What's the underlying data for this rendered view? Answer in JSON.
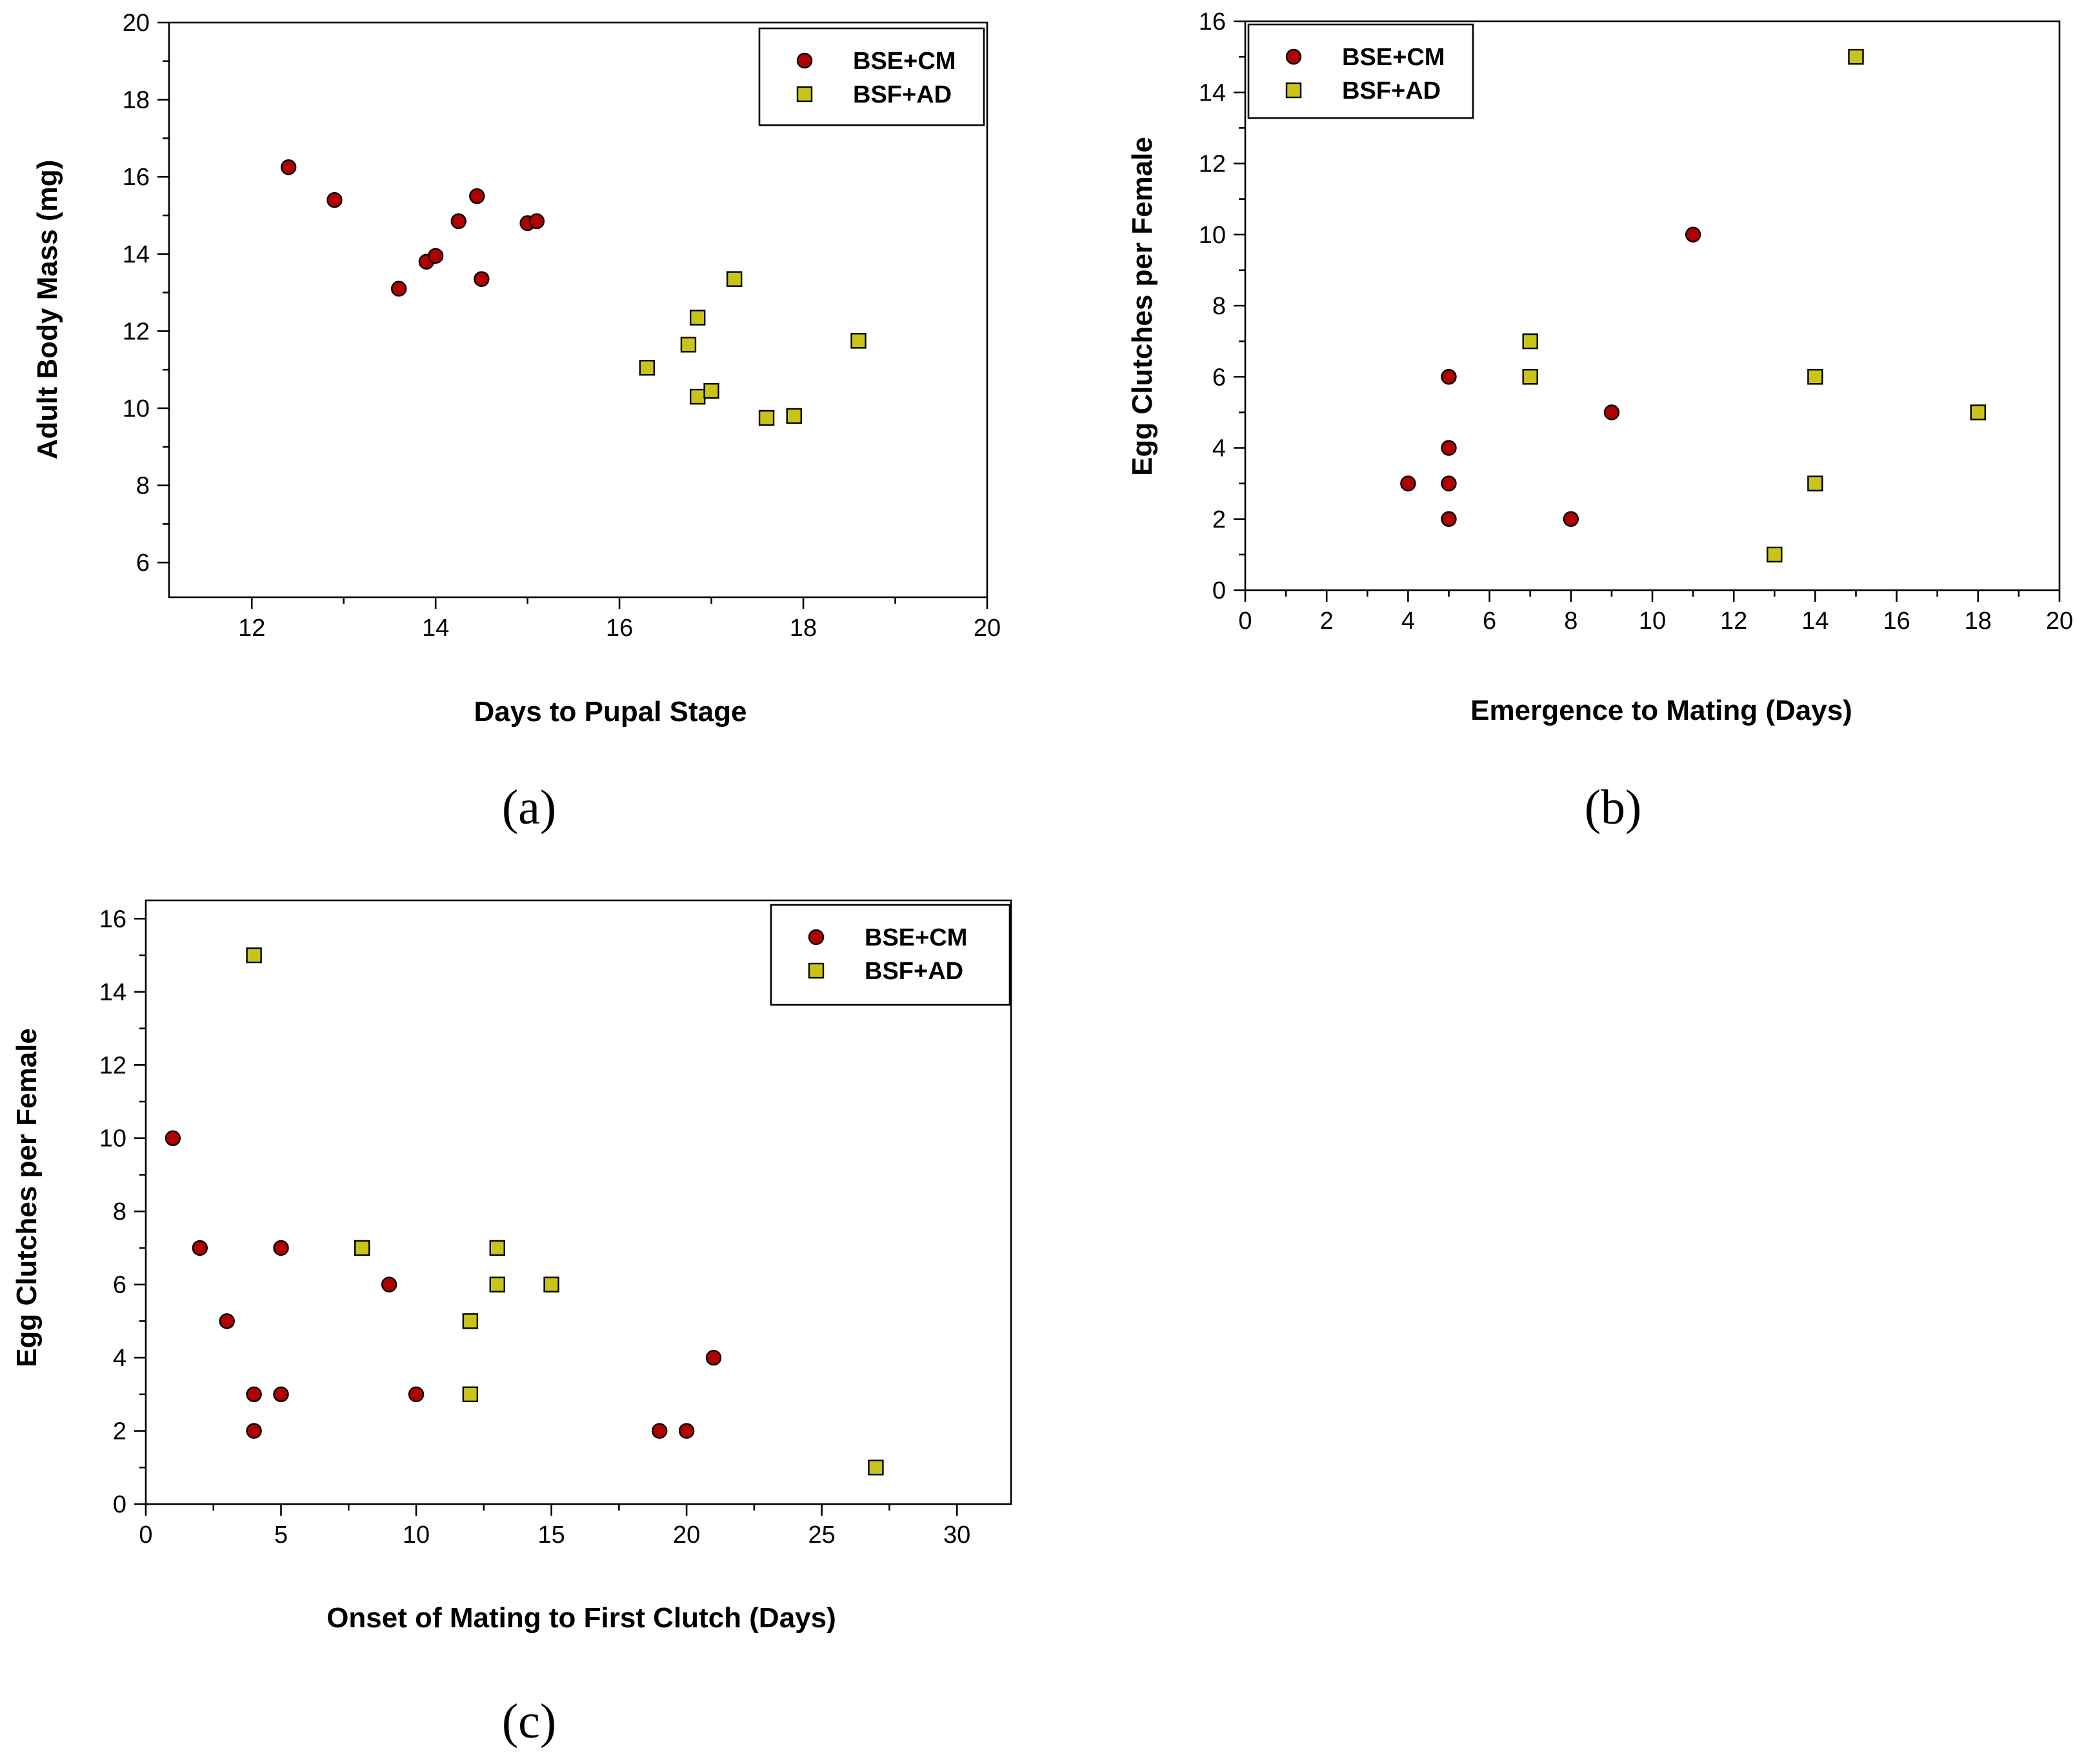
{
  "colors": {
    "circle": "#B00000",
    "square": "#C8C41A",
    "axis": "#000000"
  },
  "chart_data": [
    {
      "type": "scatter",
      "panel_label": "(a)",
      "xlabel": "Days to Pupal Stage",
      "ylabel": "Adult Body Mass (mg)",
      "xlim": [
        11.1,
        20
      ],
      "ylim": [
        5.1,
        20
      ],
      "xticks": [
        12,
        14,
        16,
        18,
        20
      ],
      "yticks": [
        6,
        8,
        10,
        12,
        14,
        16,
        18,
        20
      ],
      "legend_position": "top-right",
      "series": [
        {
          "name": "BSE+CM",
          "marker": "circle",
          "points": [
            [
              12.4,
              16.25
            ],
            [
              12.9,
              15.4
            ],
            [
              13.6,
              13.1
            ],
            [
              13.9,
              13.8
            ],
            [
              14.0,
              13.95
            ],
            [
              14.25,
              14.85
            ],
            [
              14.45,
              15.5
            ],
            [
              14.5,
              13.35
            ],
            [
              15.0,
              14.8
            ],
            [
              15.1,
              14.85
            ]
          ]
        },
        {
          "name": "BSF+AD",
          "marker": "square",
          "points": [
            [
              16.3,
              11.05
            ],
            [
              16.75,
              11.65
            ],
            [
              16.85,
              12.35
            ],
            [
              16.85,
              10.3
            ],
            [
              17.0,
              10.45
            ],
            [
              17.25,
              13.35
            ],
            [
              17.6,
              9.75
            ],
            [
              17.9,
              9.8
            ],
            [
              18.6,
              11.75
            ]
          ]
        }
      ]
    },
    {
      "type": "scatter",
      "panel_label": "(b)",
      "xlabel": "Emergence to Mating (Days)",
      "ylabel": "Egg Clutches per Female",
      "xlim": [
        0,
        20
      ],
      "ylim": [
        0,
        16
      ],
      "xticks": [
        0,
        2,
        4,
        6,
        8,
        10,
        12,
        14,
        16,
        18,
        20
      ],
      "yticks": [
        0,
        2,
        4,
        6,
        8,
        10,
        12,
        14,
        16
      ],
      "legend_position": "top-left",
      "series": [
        {
          "name": "BSE+CM",
          "marker": "circle",
          "points": [
            [
              4,
              3
            ],
            [
              5,
              6
            ],
            [
              5,
              4
            ],
            [
              5,
              3
            ],
            [
              5,
              2
            ],
            [
              8,
              2
            ],
            [
              9,
              5
            ],
            [
              11,
              10
            ]
          ]
        },
        {
          "name": "BSF+AD",
          "marker": "square",
          "points": [
            [
              7,
              7
            ],
            [
              7,
              6
            ],
            [
              13,
              1
            ],
            [
              14,
              6
            ],
            [
              14,
              3
            ],
            [
              15,
              15
            ],
            [
              18,
              5
            ]
          ]
        }
      ]
    },
    {
      "type": "scatter",
      "panel_label": "(c)",
      "xlabel": "Onset of Mating to First Clutch (Days)",
      "ylabel": "Egg Clutches per Female",
      "xlim": [
        0,
        32
      ],
      "ylim": [
        0,
        16.5
      ],
      "xticks": [
        0,
        5,
        10,
        15,
        20,
        25,
        30
      ],
      "yticks": [
        0,
        2,
        4,
        6,
        8,
        10,
        12,
        14,
        16
      ],
      "legend_position": "top-right",
      "series": [
        {
          "name": "BSE+CM",
          "marker": "circle",
          "points": [
            [
              1,
              10
            ],
            [
              2,
              7
            ],
            [
              3,
              5
            ],
            [
              4,
              3
            ],
            [
              4,
              2
            ],
            [
              5,
              7
            ],
            [
              5,
              3
            ],
            [
              9,
              6
            ],
            [
              10,
              3
            ],
            [
              19,
              2
            ],
            [
              20,
              2
            ],
            [
              21,
              4
            ]
          ]
        },
        {
          "name": "BSF+AD",
          "marker": "square",
          "points": [
            [
              4,
              15
            ],
            [
              8,
              7
            ],
            [
              12,
              5
            ],
            [
              12,
              3
            ],
            [
              13,
              7
            ],
            [
              13,
              6
            ],
            [
              15,
              6
            ],
            [
              27,
              1
            ]
          ]
        }
      ]
    }
  ]
}
